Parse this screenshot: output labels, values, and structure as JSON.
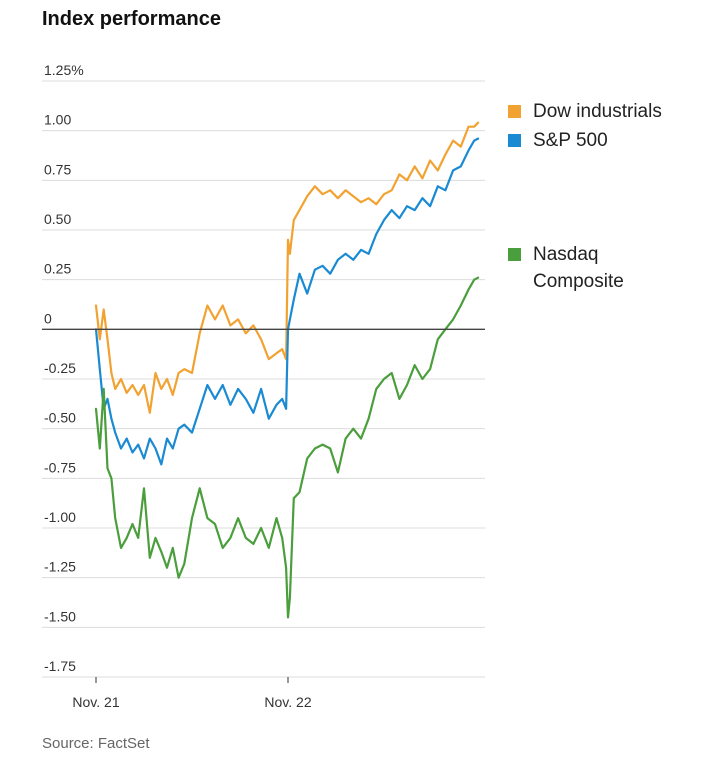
{
  "chart_data": {
    "type": "line",
    "title": "Index performance",
    "source": "Source: FactSet",
    "ylim": [
      -1.75,
      1.25
    ],
    "y_ticks": [
      {
        "value": 1.25,
        "label": "1.25%"
      },
      {
        "value": 1.0,
        "label": "1.00"
      },
      {
        "value": 0.75,
        "label": "0.75"
      },
      {
        "value": 0.5,
        "label": "0.50"
      },
      {
        "value": 0.25,
        "label": "0.25"
      },
      {
        "value": 0,
        "label": "0"
      },
      {
        "value": -0.25,
        "label": "-0.25"
      },
      {
        "value": -0.5,
        "label": "-0.50"
      },
      {
        "value": -0.75,
        "label": "-0.75"
      },
      {
        "value": -1.0,
        "label": "-1.00"
      },
      {
        "value": -1.25,
        "label": "-1.25"
      },
      {
        "value": -1.5,
        "label": "-1.50"
      },
      {
        "value": -1.75,
        "label": "-1.75"
      }
    ],
    "x_ticks": [
      {
        "value": 0,
        "label": "Nov. 21"
      },
      {
        "value": 1,
        "label": "Nov. 22"
      }
    ],
    "xlim": [
      0,
      2
    ],
    "grid": true,
    "legend_position": "right",
    "series": [
      {
        "name": "Dow industrials",
        "color": "#f2a230",
        "x": [
          0,
          0.02,
          0.04,
          0.06,
          0.08,
          0.1,
          0.13,
          0.16,
          0.19,
          0.22,
          0.25,
          0.28,
          0.31,
          0.34,
          0.37,
          0.4,
          0.43,
          0.46,
          0.5,
          0.54,
          0.58,
          0.62,
          0.66,
          0.7,
          0.74,
          0.78,
          0.82,
          0.86,
          0.9,
          0.94,
          0.97,
          0.99,
          1.0,
          1.01,
          1.03,
          1.06,
          1.1,
          1.14,
          1.18,
          1.22,
          1.26,
          1.3,
          1.34,
          1.38,
          1.42,
          1.46,
          1.5,
          1.54,
          1.58,
          1.62,
          1.66,
          1.7,
          1.74,
          1.78,
          1.82,
          1.86,
          1.9,
          1.94,
          1.97,
          1.99
        ],
        "y": [
          0.12,
          -0.05,
          0.1,
          -0.05,
          -0.22,
          -0.3,
          -0.25,
          -0.32,
          -0.28,
          -0.33,
          -0.28,
          -0.42,
          -0.22,
          -0.3,
          -0.25,
          -0.33,
          -0.22,
          -0.2,
          -0.22,
          -0.02,
          0.12,
          0.05,
          0.12,
          0.02,
          0.05,
          -0.02,
          0.02,
          -0.05,
          -0.15,
          -0.12,
          -0.1,
          -0.15,
          0.45,
          0.38,
          0.55,
          0.6,
          0.67,
          0.72,
          0.68,
          0.7,
          0.66,
          0.7,
          0.67,
          0.64,
          0.66,
          0.63,
          0.68,
          0.7,
          0.78,
          0.75,
          0.82,
          0.76,
          0.85,
          0.8,
          0.88,
          0.95,
          0.92,
          1.02,
          1.02,
          1.04
        ]
      },
      {
        "name": "S&P 500",
        "color": "#1a8ad3",
        "x": [
          0,
          0.02,
          0.04,
          0.06,
          0.08,
          0.1,
          0.13,
          0.16,
          0.19,
          0.22,
          0.25,
          0.28,
          0.31,
          0.34,
          0.37,
          0.4,
          0.43,
          0.46,
          0.5,
          0.54,
          0.58,
          0.62,
          0.66,
          0.7,
          0.74,
          0.78,
          0.82,
          0.86,
          0.9,
          0.94,
          0.97,
          0.99,
          1.0,
          1.01,
          1.03,
          1.06,
          1.1,
          1.14,
          1.18,
          1.22,
          1.26,
          1.3,
          1.34,
          1.38,
          1.42,
          1.46,
          1.5,
          1.54,
          1.58,
          1.62,
          1.66,
          1.7,
          1.74,
          1.78,
          1.82,
          1.86,
          1.9,
          1.94,
          1.97,
          1.99
        ],
        "y": [
          0,
          -0.2,
          -0.4,
          -0.35,
          -0.45,
          -0.52,
          -0.6,
          -0.55,
          -0.62,
          -0.58,
          -0.65,
          -0.55,
          -0.6,
          -0.68,
          -0.55,
          -0.6,
          -0.5,
          -0.48,
          -0.52,
          -0.4,
          -0.28,
          -0.35,
          -0.28,
          -0.38,
          -0.3,
          -0.35,
          -0.42,
          -0.3,
          -0.45,
          -0.38,
          -0.35,
          -0.4,
          0.0,
          0.05,
          0.15,
          0.28,
          0.18,
          0.3,
          0.32,
          0.28,
          0.35,
          0.38,
          0.35,
          0.4,
          0.38,
          0.48,
          0.55,
          0.6,
          0.56,
          0.62,
          0.6,
          0.66,
          0.62,
          0.72,
          0.7,
          0.8,
          0.82,
          0.9,
          0.95,
          0.96
        ]
      },
      {
        "name": "Nasdaq Composite",
        "color": "#4a9e3b",
        "x": [
          0,
          0.02,
          0.04,
          0.06,
          0.08,
          0.1,
          0.13,
          0.16,
          0.19,
          0.22,
          0.25,
          0.28,
          0.31,
          0.34,
          0.37,
          0.4,
          0.43,
          0.46,
          0.5,
          0.54,
          0.58,
          0.62,
          0.66,
          0.7,
          0.74,
          0.78,
          0.82,
          0.86,
          0.9,
          0.94,
          0.97,
          0.99,
          1.0,
          1.01,
          1.03,
          1.06,
          1.1,
          1.14,
          1.18,
          1.22,
          1.26,
          1.3,
          1.34,
          1.38,
          1.42,
          1.46,
          1.5,
          1.54,
          1.58,
          1.62,
          1.66,
          1.7,
          1.74,
          1.78,
          1.82,
          1.86,
          1.9,
          1.94,
          1.97,
          1.99
        ],
        "y": [
          -0.4,
          -0.6,
          -0.3,
          -0.7,
          -0.75,
          -0.95,
          -1.1,
          -1.05,
          -0.98,
          -1.05,
          -0.8,
          -1.15,
          -1.05,
          -1.12,
          -1.2,
          -1.1,
          -1.25,
          -1.18,
          -0.95,
          -0.8,
          -0.95,
          -0.98,
          -1.1,
          -1.05,
          -0.95,
          -1.05,
          -1.08,
          -1.0,
          -1.1,
          -0.95,
          -1.05,
          -1.2,
          -1.45,
          -1.35,
          -0.85,
          -0.82,
          -0.65,
          -0.6,
          -0.58,
          -0.6,
          -0.72,
          -0.55,
          -0.5,
          -0.55,
          -0.45,
          -0.3,
          -0.25,
          -0.22,
          -0.35,
          -0.28,
          -0.18,
          -0.25,
          -0.2,
          -0.05,
          0.0,
          0.05,
          0.12,
          0.2,
          0.25,
          0.26
        ]
      }
    ],
    "legend": [
      {
        "label": "Dow industrials",
        "color": "#f2a230"
      },
      {
        "label": "S&P 500",
        "color": "#1a8ad3"
      },
      {
        "label": "Nasdaq\nComposite",
        "color": "#4a9e3b"
      }
    ]
  }
}
